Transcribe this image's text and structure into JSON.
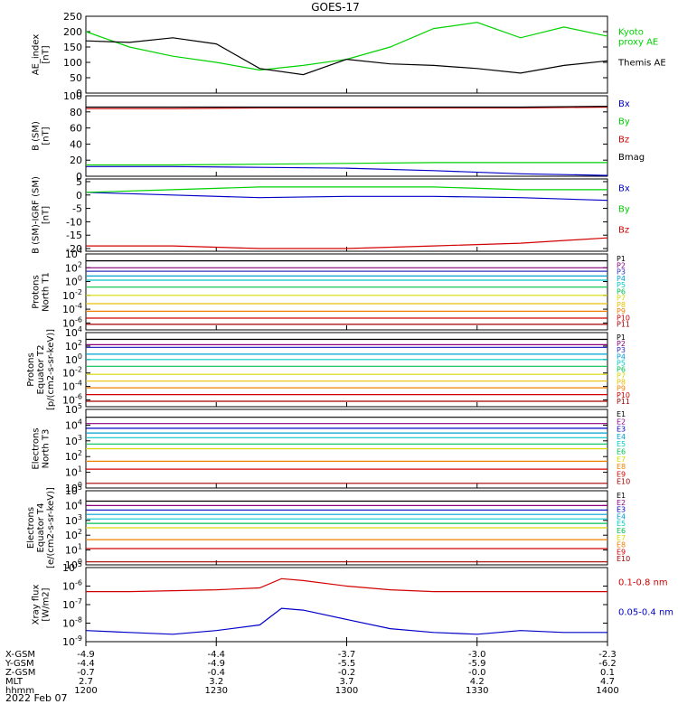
{
  "title": "GOES-17",
  "date_label": "2022 Feb 07",
  "colors": {
    "black": "#000000",
    "red": "#d20000",
    "green": "#00d200",
    "blue": "#0000c8",
    "p1": "#000000",
    "p2": "#8c0080",
    "p3": "#3030c0",
    "p4": "#00a0d0",
    "p5": "#00c8c8",
    "p6": "#00c050",
    "p7": "#d8d800",
    "p8": "#e8c000",
    "p9": "#f08000",
    "p10": "#d00000",
    "p11": "#a00000"
  },
  "chart_data": [
    {
      "type": "line",
      "id": "ae",
      "ylabel_lines": [
        "AE_index",
        "[nT]"
      ],
      "ylim": [
        0,
        250
      ],
      "yticks": [
        "0",
        "50",
        "100",
        "150",
        "200",
        "250"
      ],
      "ytick_values": [
        0,
        50,
        100,
        150,
        200,
        250
      ],
      "x": [
        0,
        10,
        20,
        30,
        40,
        50,
        60,
        70,
        80,
        90,
        100,
        110,
        120
      ],
      "series": [
        {
          "name": "Kyoto proxy AE",
          "legend_lines": [
            "Kyoto",
            "proxy AE"
          ],
          "color": "#00d200",
          "values": [
            200,
            150,
            120,
            100,
            75,
            90,
            110,
            150,
            210,
            230,
            180,
            215,
            185
          ]
        },
        {
          "name": "Themis AE",
          "legend_lines": [
            "Themis AE"
          ],
          "color": "#000000",
          "values": [
            170,
            165,
            180,
            160,
            80,
            60,
            110,
            95,
            90,
            80,
            65,
            90,
            105
          ]
        }
      ]
    },
    {
      "type": "line",
      "id": "bsm",
      "ylabel_lines": [
        "B (SM)",
        "[nT]"
      ],
      "ylim": [
        0,
        100
      ],
      "yticks": [
        "0",
        "20",
        "40",
        "60",
        "80",
        "100"
      ],
      "ytick_values": [
        0,
        20,
        40,
        60,
        80,
        100
      ],
      "x": [
        0,
        20,
        40,
        60,
        80,
        100,
        120
      ],
      "series": [
        {
          "name": "Bx",
          "legend_lines": [
            "Bx"
          ],
          "color": "#0000c8",
          "values": [
            12,
            12,
            11,
            10,
            7,
            3,
            1
          ]
        },
        {
          "name": "By",
          "legend_lines": [
            "By"
          ],
          "color": "#00d200",
          "values": [
            14,
            14,
            15,
            16,
            17,
            17,
            17
          ]
        },
        {
          "name": "Bz",
          "legend_lines": [
            "Bz"
          ],
          "color": "#d20000",
          "values": [
            84,
            84,
            85,
            85,
            85,
            85,
            86
          ]
        },
        {
          "name": "Bmag",
          "legend_lines": [
            "Bmag"
          ],
          "color": "#000000",
          "values": [
            86,
            86,
            86,
            86,
            86,
            86,
            87
          ]
        }
      ]
    },
    {
      "type": "line",
      "id": "bigrf",
      "ylabel_lines": [
        "B (SM)-IGRF (SM)",
        "[nT]"
      ],
      "ylim": [
        -21,
        6
      ],
      "yticks": [
        "-20",
        "-15",
        "-10",
        "-5",
        "0",
        "5"
      ],
      "ytick_values": [
        -20,
        -15,
        -10,
        -5,
        0,
        5
      ],
      "x": [
        0,
        20,
        40,
        60,
        80,
        100,
        120
      ],
      "series": [
        {
          "name": "Bx",
          "legend_lines": [
            "Bx"
          ],
          "color": "#0000c8",
          "values": [
            1,
            0,
            -1,
            -0.5,
            -0.5,
            -1,
            -2
          ]
        },
        {
          "name": "By",
          "legend_lines": [
            "By"
          ],
          "color": "#00d200",
          "values": [
            1,
            2,
            3,
            3,
            3,
            2,
            2
          ]
        },
        {
          "name": "Bz",
          "legend_lines": [
            "Bz"
          ],
          "color": "#d20000",
          "values": [
            -19,
            -19,
            -20,
            -20,
            -19,
            -18,
            -16
          ]
        }
      ]
    },
    {
      "type": "line",
      "id": "protons-north",
      "log": true,
      "ylabel_lines": [
        "Protons",
        "North T1"
      ],
      "ylim_exp": [
        -7,
        4
      ],
      "yticks": [
        "10-6",
        "10-4",
        "10-2",
        "100",
        "102",
        "104"
      ],
      "ytick_values": [
        -6,
        -4,
        -2,
        0,
        2,
        4
      ],
      "x": [
        0,
        120
      ],
      "series": [
        {
          "name": "P1",
          "legend_lines": [
            "P1"
          ],
          "color": "#000000",
          "values": [
            3,
            3
          ]
        },
        {
          "name": "P2",
          "legend_lines": [
            "P2"
          ],
          "color": "#8c0080",
          "values": [
            2,
            2
          ]
        },
        {
          "name": "P3",
          "legend_lines": [
            "P3"
          ],
          "color": "#3030c0",
          "values": [
            1.5,
            1.5
          ]
        },
        {
          "name": "P4",
          "legend_lines": [
            "P4"
          ],
          "color": "#00a0d0",
          "values": [
            0.8,
            0.8
          ]
        },
        {
          "name": "P5",
          "legend_lines": [
            "P5"
          ],
          "color": "#00c8c8",
          "values": [
            0.2,
            0.2
          ]
        },
        {
          "name": "P6",
          "legend_lines": [
            "P6"
          ],
          "color": "#00c050",
          "values": [
            -0.8,
            -0.8
          ]
        },
        {
          "name": "P7",
          "legend_lines": [
            "P7"
          ],
          "color": "#d8d800",
          "values": [
            -2,
            -2
          ]
        },
        {
          "name": "P8",
          "legend_lines": [
            "P8"
          ],
          "color": "#e8c000",
          "values": [
            -3.2,
            -3.2
          ]
        },
        {
          "name": "P9",
          "legend_lines": [
            "P9"
          ],
          "color": "#f08000",
          "values": [
            -4.3,
            -4.3
          ]
        },
        {
          "name": "P10",
          "legend_lines": [
            "P10"
          ],
          "color": "#d00000",
          "values": [
            -5.3,
            -5.3
          ]
        },
        {
          "name": "P11",
          "legend_lines": [
            "P11"
          ],
          "color": "#a00000",
          "values": [
            -6.2,
            -6.2
          ]
        }
      ]
    },
    {
      "type": "line",
      "id": "protons-equator",
      "log": true,
      "ylabel_lines": [
        "Protons",
        "Equator T2",
        "[p/(cm2-s-sr-keV)]"
      ],
      "ylim_exp": [
        -7,
        4
      ],
      "yticks": [
        "10-6",
        "10-4",
        "10-2",
        "100",
        "102",
        "104"
      ],
      "ytick_values": [
        -6,
        -4,
        -2,
        0,
        2,
        4
      ],
      "x": [
        0,
        120
      ],
      "series": [
        {
          "name": "P1",
          "legend_lines": [
            "P1"
          ],
          "color": "#000000",
          "values": [
            3,
            3
          ]
        },
        {
          "name": "P2",
          "legend_lines": [
            "P2"
          ],
          "color": "#8c0080",
          "values": [
            2.2,
            2.2
          ]
        },
        {
          "name": "P3",
          "legend_lines": [
            "P3"
          ],
          "color": "#3030c0",
          "values": [
            1.8,
            1.8
          ]
        },
        {
          "name": "P4",
          "legend_lines": [
            "P4"
          ],
          "color": "#00a0d0",
          "values": [
            0.8,
            0.8
          ]
        },
        {
          "name": "P5",
          "legend_lines": [
            "P5"
          ],
          "color": "#00c8c8",
          "values": [
            0,
            0
          ]
        },
        {
          "name": "P6",
          "legend_lines": [
            "P6"
          ],
          "color": "#00c050",
          "values": [
            -1,
            -1
          ]
        },
        {
          "name": "P7",
          "legend_lines": [
            "P7"
          ],
          "color": "#d8d800",
          "values": [
            -2.2,
            -2.2
          ]
        },
        {
          "name": "P8",
          "legend_lines": [
            "P8"
          ],
          "color": "#e8c000",
          "values": [
            -3.2,
            -3.2
          ]
        },
        {
          "name": "P9",
          "legend_lines": [
            "P9"
          ],
          "color": "#f08000",
          "values": [
            -4.2,
            -4.2
          ]
        },
        {
          "name": "P10",
          "legend_lines": [
            "P10"
          ],
          "color": "#d00000",
          "values": [
            -5.2,
            -5.2
          ]
        },
        {
          "name": "P11",
          "legend_lines": [
            "P11"
          ],
          "color": "#a00000",
          "values": [
            -6.2,
            -6.2
          ]
        }
      ]
    },
    {
      "type": "line",
      "id": "electrons-north",
      "log": true,
      "ylabel_lines": [
        "Electrons",
        "North T3"
      ],
      "ylim_exp": [
        0,
        5
      ],
      "yticks": [
        "100",
        "101",
        "102",
        "103",
        "104",
        "105"
      ],
      "ytick_values": [
        0,
        1,
        2,
        3,
        4,
        5
      ],
      "x": [
        0,
        120
      ],
      "series": [
        {
          "name": "E1",
          "legend_lines": [
            "E1"
          ],
          "color": "#000000",
          "values": [
            4.5,
            4.5
          ]
        },
        {
          "name": "E2",
          "legend_lines": [
            "E2"
          ],
          "color": "#8c0080",
          "values": [
            4.1,
            4.1
          ]
        },
        {
          "name": "E3",
          "legend_lines": [
            "E3"
          ],
          "color": "#0000c8",
          "values": [
            3.8,
            3.8
          ]
        },
        {
          "name": "E4",
          "legend_lines": [
            "E4"
          ],
          "color": "#00a0d0",
          "values": [
            3.5,
            3.5
          ]
        },
        {
          "name": "E5",
          "legend_lines": [
            "E5"
          ],
          "color": "#00c8c8",
          "values": [
            3.2,
            3.2
          ]
        },
        {
          "name": "E6",
          "legend_lines": [
            "E6"
          ],
          "color": "#00c050",
          "values": [
            2.8,
            2.8
          ]
        },
        {
          "name": "E7",
          "legend_lines": [
            "E7"
          ],
          "color": "#d8d800",
          "values": [
            2.5,
            2.5
          ]
        },
        {
          "name": "E8",
          "legend_lines": [
            "E8"
          ],
          "color": "#f08000",
          "values": [
            1.7,
            1.7
          ]
        },
        {
          "name": "E9",
          "legend_lines": [
            "E9"
          ],
          "color": "#d00000",
          "values": [
            1.2,
            1.2
          ]
        },
        {
          "name": "E10",
          "legend_lines": [
            "E10"
          ],
          "color": "#a00000",
          "values": [
            0.3,
            0.3
          ]
        }
      ]
    },
    {
      "type": "line",
      "id": "electrons-equator",
      "log": true,
      "ylabel_lines": [
        "Electrons",
        "Equator T4",
        "[e/(cm2-s-sr-keV)]"
      ],
      "ylim_exp": [
        0,
        5
      ],
      "yticks": [
        "100",
        "101",
        "102",
        "103",
        "104",
        "105"
      ],
      "ytick_values": [
        0,
        1,
        2,
        3,
        4,
        5
      ],
      "x": [
        0,
        120
      ],
      "series": [
        {
          "name": "E1",
          "legend_lines": [
            "E1"
          ],
          "color": "#000000",
          "values": [
            4.3,
            4.3
          ]
        },
        {
          "name": "E2",
          "legend_lines": [
            "E2"
          ],
          "color": "#8c0080",
          "values": [
            4,
            4
          ]
        },
        {
          "name": "E3",
          "legend_lines": [
            "E3"
          ],
          "color": "#0000c8",
          "values": [
            3.7,
            3.7
          ]
        },
        {
          "name": "E4",
          "legend_lines": [
            "E4"
          ],
          "color": "#00a0d0",
          "values": [
            3.4,
            3.4
          ]
        },
        {
          "name": "E5",
          "legend_lines": [
            "E5"
          ],
          "color": "#00c8c8",
          "values": [
            3.1,
            3.1
          ]
        },
        {
          "name": "E6",
          "legend_lines": [
            "E6"
          ],
          "color": "#00c050",
          "values": [
            2.8,
            2.8
          ]
        },
        {
          "name": "E7",
          "legend_lines": [
            "E7"
          ],
          "color": "#d8d800",
          "values": [
            2.5,
            2.5
          ]
        },
        {
          "name": "E8",
          "legend_lines": [
            "E8"
          ],
          "color": "#f08000",
          "values": [
            1.7,
            1.7
          ]
        },
        {
          "name": "E9",
          "legend_lines": [
            "E9"
          ],
          "color": "#d00000",
          "values": [
            1.1,
            1.1
          ]
        },
        {
          "name": "E10",
          "legend_lines": [
            "E10"
          ],
          "color": "#a00000",
          "values": [
            0.2,
            0.2
          ]
        }
      ]
    },
    {
      "type": "line",
      "id": "xray",
      "log": true,
      "ylabel_lines": [
        "Xray flux",
        "[W/m2]"
      ],
      "ylim_exp": [
        -9,
        -5
      ],
      "yticks": [
        "10-9",
        "10-8",
        "10-7",
        "10-6",
        "10-5"
      ],
      "ytick_values": [
        -9,
        -8,
        -7,
        -6,
        -5
      ],
      "x": [
        0,
        10,
        20,
        30,
        40,
        45,
        50,
        60,
        70,
        80,
        90,
        100,
        110,
        120
      ],
      "series": [
        {
          "name": "0.1-0.8 nm",
          "legend_lines": [
            "0.1-0.8 nm"
          ],
          "color": "#d20000",
          "values": [
            -6.3,
            -6.3,
            -6.25,
            -6.2,
            -6.1,
            -5.6,
            -5.7,
            -6.0,
            -6.2,
            -6.3,
            -6.3,
            -6.3,
            -6.3,
            -6.3
          ]
        },
        {
          "name": "0.05-0.4 nm",
          "legend_lines": [
            "0.05-0.4 nm"
          ],
          "color": "#0000c8",
          "values": [
            -8.4,
            -8.5,
            -8.6,
            -8.4,
            -8.1,
            -7.2,
            -7.3,
            -7.8,
            -8.3,
            -8.5,
            -8.6,
            -8.4,
            -8.5,
            -8.5
          ]
        }
      ]
    }
  ],
  "xaxis": {
    "rows": [
      {
        "label": "X-GSM",
        "values": [
          "-4.9",
          "-4.4",
          "-3.7",
          "-3.0",
          "-2.3"
        ]
      },
      {
        "label": "Y-GSM",
        "values": [
          "-4.4",
          "-4.9",
          "-5.5",
          "-5.9",
          "-6.2"
        ]
      },
      {
        "label": "Z-GSM",
        "values": [
          "-0.7",
          "-0.4",
          "-0.2",
          "-0.0",
          "0.1"
        ]
      },
      {
        "label": "MLT",
        "values": [
          "2.7",
          "3.2",
          "3.7",
          "4.2",
          "4.7"
        ]
      },
      {
        "label": "hhmm",
        "values": [
          "1200",
          "1230",
          "1300",
          "1330",
          "1400"
        ]
      }
    ],
    "tick_x": [
      0,
      30,
      60,
      90,
      120
    ]
  }
}
